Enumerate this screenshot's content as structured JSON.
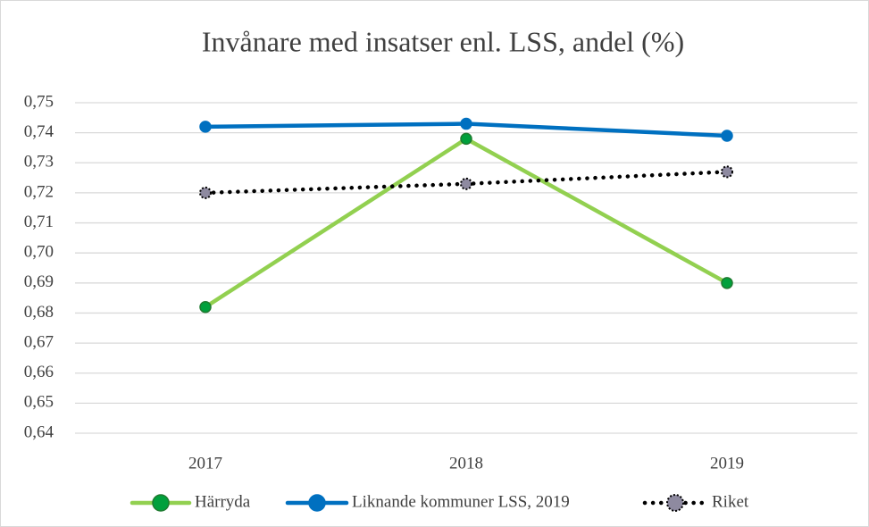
{
  "chart_data": {
    "type": "line",
    "title": "Invånare med insatser enl. LSS, andel (%)",
    "categories": [
      "2017",
      "2018",
      "2019"
    ],
    "series": [
      {
        "name": "Härryda",
        "color": "#92d050",
        "marker_color": "#00a03c",
        "values": [
          0.682,
          0.738,
          0.69
        ]
      },
      {
        "name": "Liknande kommuner LSS, 2019",
        "color": "#0070c0",
        "marker_color": "#0070c0",
        "values": [
          0.742,
          0.743,
          0.739
        ]
      },
      {
        "name": "Riket",
        "color": "#000000",
        "marker_color": "#8e8aa0",
        "dotted": true,
        "values": [
          0.72,
          0.723,
          0.727
        ]
      }
    ],
    "ylim": [
      0.64,
      0.75
    ],
    "yticks": [
      {
        "value": 0.64,
        "label": "0,64"
      },
      {
        "value": 0.65,
        "label": "0,65"
      },
      {
        "value": 0.66,
        "label": "0,66"
      },
      {
        "value": 0.67,
        "label": "0,67"
      },
      {
        "value": 0.68,
        "label": "0,68"
      },
      {
        "value": 0.69,
        "label": "0,69"
      },
      {
        "value": 0.7,
        "label": "0,70"
      },
      {
        "value": 0.71,
        "label": "0,71"
      },
      {
        "value": 0.72,
        "label": "0,72"
      },
      {
        "value": 0.73,
        "label": "0,73"
      },
      {
        "value": 0.74,
        "label": "0,74"
      },
      {
        "value": 0.75,
        "label": "0,75"
      }
    ],
    "grid": true,
    "legend": "bottom"
  }
}
